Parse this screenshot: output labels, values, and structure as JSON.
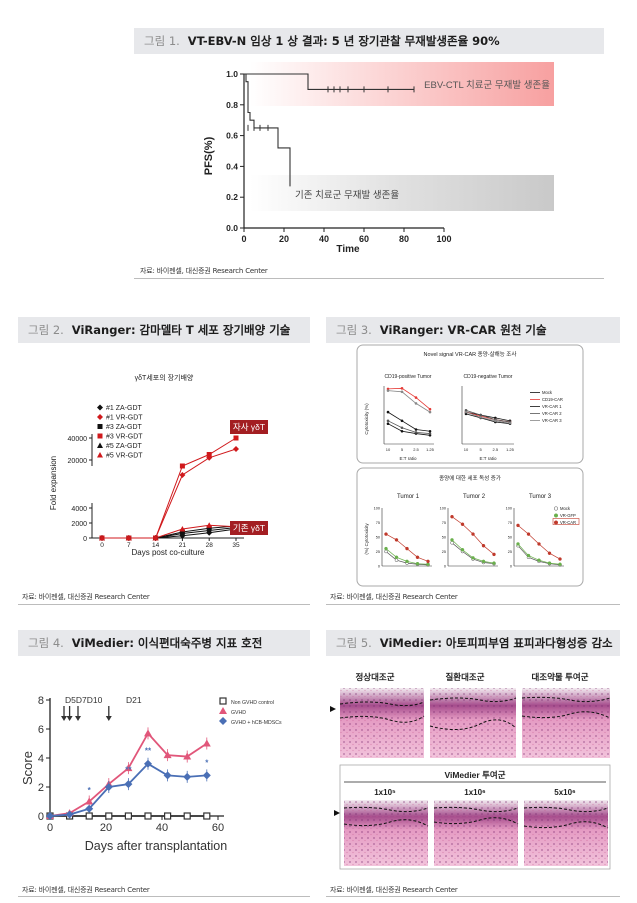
{
  "figures": [
    {
      "label": "그림 1.",
      "title": "VT-EBV-N 임상 1 상 결과: 5 년 장기관찰 무재발생존율 90%",
      "source": "자료: 바이젠셀, 대신증권 Research Center"
    },
    {
      "label": "그림 2.",
      "title": "ViRanger: 감마델타 T 세포 장기배양 기술",
      "source": "자료: 바이젠셀, 대신증권 Research Center"
    },
    {
      "label": "그림 3.",
      "title": "ViRanger: VR-CAR 원천 기술",
      "source": "자료: 바이젠셀, 대신증권 Research Center"
    },
    {
      "label": "그림 4.",
      "title": "ViMedier: 이식편대숙주병 지표 호전",
      "source": "자료: 바이젠셀, 대신증권 Research Center"
    },
    {
      "label": "그림 5.",
      "title": "ViMedier: 아토피피부염 표피과다형성증 감소",
      "source": "자료: 바이젠셀, 대신증권 Research Center"
    }
  ],
  "chart_data": [
    {
      "type": "line",
      "xlabel": "Time",
      "ylabel": "PFS(%)",
      "xlim": [
        0,
        100
      ],
      "ylim": [
        0,
        1.0
      ],
      "xticks": [
        "0",
        "20",
        "40",
        "60",
        "80",
        "100"
      ],
      "yticks": [
        "0.0",
        "0.2",
        "0.4",
        "0.6",
        "0.8",
        "1.0"
      ],
      "series": [
        {
          "name": "EBV-CTL 치료군 무재발 생존율",
          "x": [
            0,
            32,
            32,
            85
          ],
          "y": [
            1.0,
            1.0,
            0.9,
            0.9
          ]
        },
        {
          "name": "기존 치료군 무재발 생존율",
          "x": [
            0,
            1,
            1,
            2,
            2,
            3,
            3,
            5,
            5,
            17,
            17,
            23,
            23
          ],
          "y": [
            1.0,
            1.0,
            0.95,
            0.95,
            0.75,
            0.75,
            0.7,
            0.7,
            0.65,
            0.65,
            0.52,
            0.52,
            0.27
          ]
        }
      ]
    },
    {
      "type": "line",
      "title": "γδT세포의 장기배양",
      "xlabel": "Days post co-culture",
      "ylabel": "Fold expansion",
      "x": [
        0,
        7,
        14,
        21,
        28,
        35
      ],
      "xticks": [
        "0",
        "7",
        "14",
        "21",
        "28",
        "35"
      ],
      "yticks": [
        "0",
        "2000",
        "4000",
        "20000",
        "40000"
      ],
      "annotations": [
        "자사 γδT",
        "기존 γδT"
      ],
      "series": [
        {
          "name": "#1 ZA-GDT",
          "values": [
            0,
            0,
            0,
            300,
            700,
            1200
          ]
        },
        {
          "name": "#1 VR-GDT",
          "values": [
            0,
            0,
            0,
            15000,
            22000,
            30000
          ]
        },
        {
          "name": "#3 ZA-GDT",
          "values": [
            0,
            0,
            0,
            800,
            1300,
            1600
          ]
        },
        {
          "name": "#3 VR-GDT",
          "values": [
            0,
            0,
            0,
            18000,
            25000,
            40000
          ]
        },
        {
          "name": "#5 ZA-GDT",
          "values": [
            0,
            0,
            0,
            600,
            1000,
            1400
          ]
        },
        {
          "name": "#5 VR-GDT",
          "values": [
            0,
            0,
            0,
            1200,
            1700,
            1500
          ]
        }
      ]
    },
    {
      "type": "line",
      "title": "Novel signal VR-CAR 종양-살해능 조사",
      "panels": [
        {
          "title": "CD19-positive Tumor",
          "ylabel": "Cytotoxicity (%)",
          "xlabel": "E:T ratio",
          "categories": [
            "10",
            "5",
            "2.5",
            "1.25"
          ]
        },
        {
          "title": "CD19-negative Tumor",
          "xlabel": "E:T ratio",
          "categories": [
            "10",
            "5",
            "2.5",
            "1.25"
          ]
        }
      ],
      "legend": [
        "Mock",
        "CD19-CAR",
        "VR-CAR 1",
        "VR-CAR 2",
        "VR-CAR 3"
      ],
      "bottom_title": "종양에 대한 세포 독성 증가",
      "bottom_panels": [
        {
          "title": "Tumor 1",
          "ylabel": "(%) Cytotoxicity"
        },
        {
          "title": "Tumor 2"
        },
        {
          "title": "Tumor 3"
        }
      ],
      "bottom_yticks": [
        "0",
        "25",
        "50",
        "75",
        "100"
      ],
      "bottom_legend": [
        "Mock",
        "VR-GFP",
        "VR-CAR"
      ]
    },
    {
      "type": "line",
      "xlabel": "Days after transplantation",
      "ylabel": "Score",
      "xlim": [
        0,
        60
      ],
      "ylim": [
        0,
        8
      ],
      "xticks": [
        "0",
        "20",
        "40",
        "60"
      ],
      "yticks": [
        "0",
        "2",
        "4",
        "6",
        "8"
      ],
      "annotations": [
        "D5D7D10",
        "D21",
        "*",
        "**",
        "**",
        "*"
      ],
      "series": [
        {
          "name": "Non GVHD control",
          "x": [
            0,
            7,
            14,
            21,
            28,
            35,
            42,
            49,
            56
          ],
          "y": [
            0,
            0,
            0,
            0,
            0,
            0,
            0,
            0,
            0
          ]
        },
        {
          "name": "GVHD",
          "x": [
            0,
            7,
            14,
            21,
            28,
            35,
            42,
            49,
            56
          ],
          "y": [
            0,
            0.2,
            1.0,
            2.2,
            3.3,
            5.7,
            4.2,
            4.1,
            5.0
          ]
        },
        {
          "name": "GVHD + hCB-MDSCs",
          "x": [
            0,
            7,
            14,
            21,
            28,
            35,
            42,
            49,
            56
          ],
          "y": [
            0,
            0.1,
            0.5,
            2.0,
            2.2,
            3.6,
            2.8,
            2.7,
            2.8
          ]
        }
      ]
    }
  ],
  "fig5": {
    "row1": [
      "정상대조군",
      "질환대조군",
      "대조약물 투여군"
    ],
    "group_title": "ViMedier 투여군",
    "row2": [
      "1x10⁵",
      "1x10⁶",
      "5x10⁶"
    ]
  }
}
